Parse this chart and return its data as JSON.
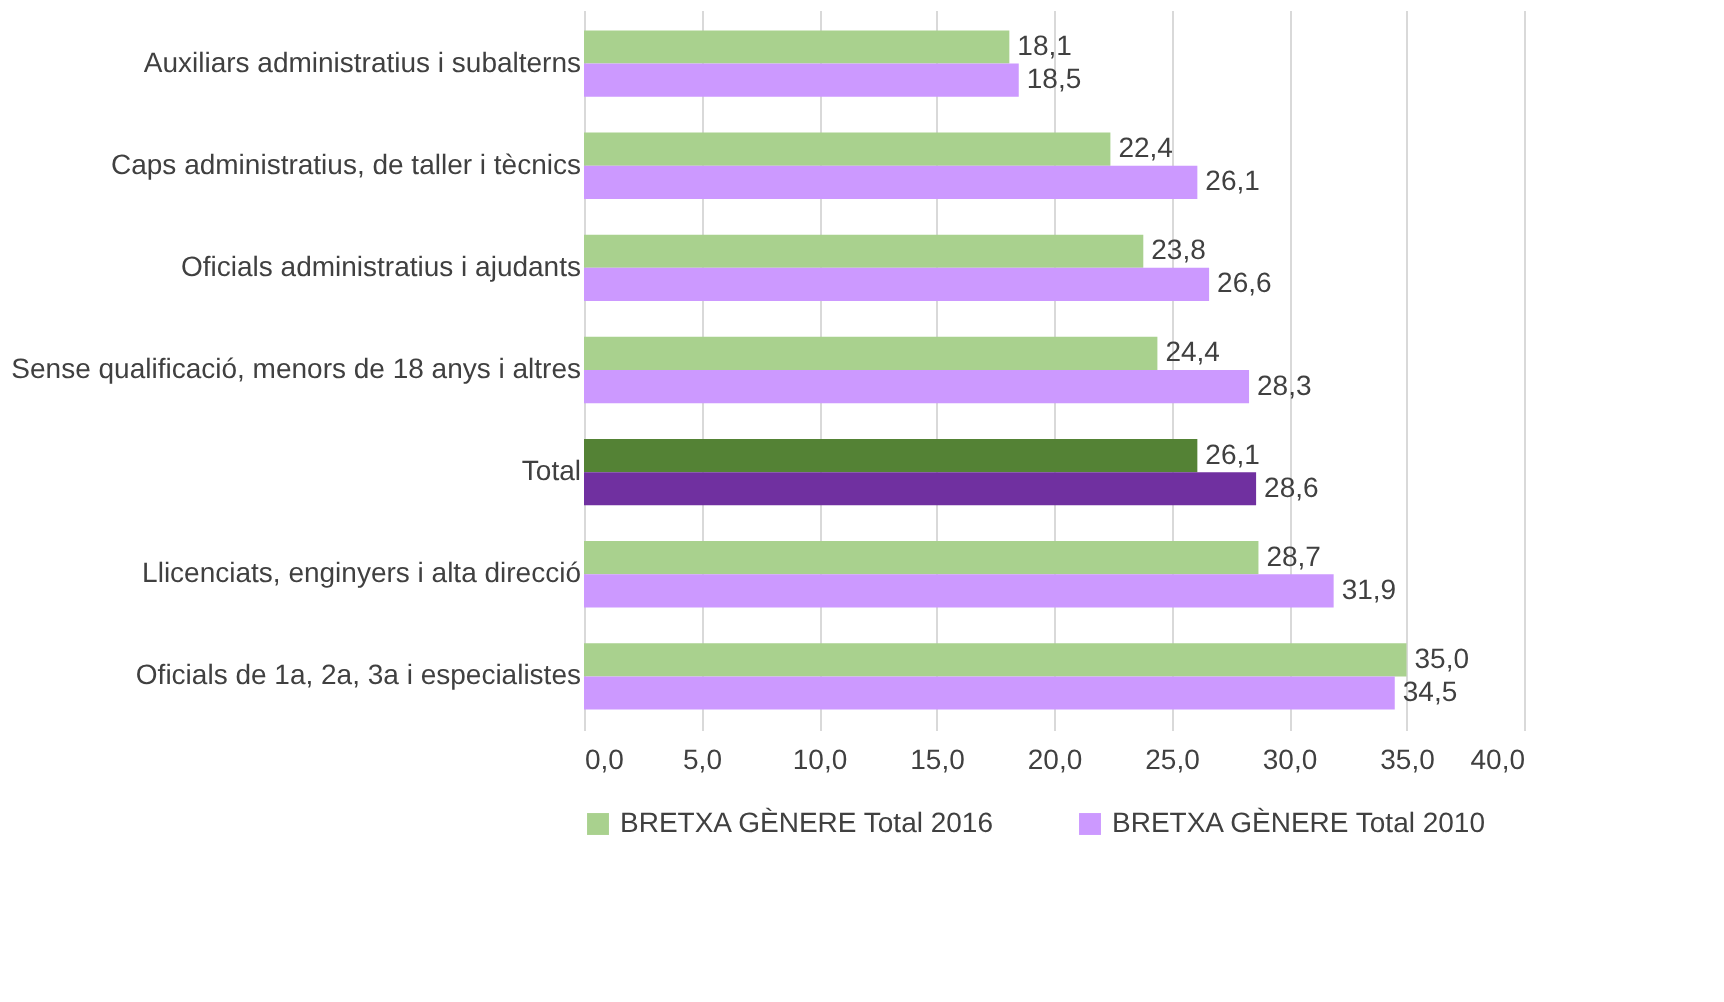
{
  "chart_data": {
    "type": "bar",
    "orientation": "horizontal",
    "categories": [
      "Auxiliars administratius i subalterns",
      "Caps administratius, de taller i tècnics",
      "Oficials administratius i ajudants",
      "Sense qualificació, menors de 18 anys i altres",
      "Total",
      "Llicenciats, enginyers i alta direcció",
      "Oficials de 1a, 2a, 3a i especialistes"
    ],
    "series": [
      {
        "name": "BRETXA GÈNERE Total 2016",
        "color": "#a9d18e",
        "colors": [
          "#a9d18e",
          "#a9d18e",
          "#a9d18e",
          "#a9d18e",
          "#548235",
          "#a9d18e",
          "#a9d18e"
        ],
        "values": [
          18.1,
          22.4,
          23.8,
          24.4,
          26.1,
          28.7,
          35.0
        ],
        "value_labels": [
          "18,1",
          "22,4",
          "23,8",
          "24,4",
          "26,1",
          "28,7",
          "35,0"
        ]
      },
      {
        "name": "BRETXA GÈNERE Total 2010",
        "color": "#cc99ff",
        "colors": [
          "#cc99ff",
          "#cc99ff",
          "#cc99ff",
          "#cc99ff",
          "#7030a0",
          "#cc99ff",
          "#cc99ff"
        ],
        "values": [
          18.5,
          26.1,
          26.6,
          28.3,
          28.6,
          31.9,
          34.5
        ],
        "value_labels": [
          "18,5",
          "26,1",
          "26,6",
          "28,3",
          "28,6",
          "31,9",
          "34,5"
        ]
      }
    ],
    "xlim": [
      0,
      40
    ],
    "xticks": [
      {
        "value": 0,
        "label": "0,0"
      },
      {
        "value": 5,
        "label": "5,0"
      },
      {
        "value": 10,
        "label": "10,0"
      },
      {
        "value": 15,
        "label": "15,0"
      },
      {
        "value": 20,
        "label": "20,0"
      },
      {
        "value": 25,
        "label": "25,0"
      },
      {
        "value": 30,
        "label": "30,0"
      },
      {
        "value": 35,
        "label": "35,0"
      },
      {
        "value": 40,
        "label": "40,0"
      }
    ],
    "grid": "x",
    "legend": "bottom"
  }
}
